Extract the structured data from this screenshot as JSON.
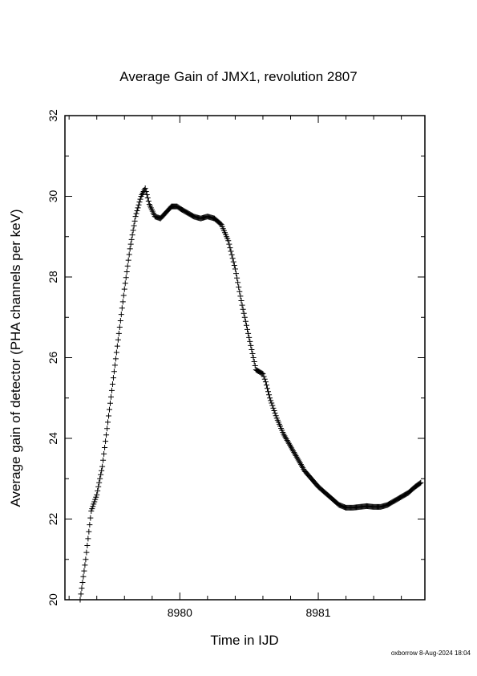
{
  "title": "Average Gain of JMX1, revolution 2807",
  "footer": "oxborrow  8-Aug-2024 18:04",
  "chart_data": {
    "type": "scatter",
    "marker": "plus",
    "title": "Average Gain of JMX1, revolution 2807",
    "xlabel": "Time in IJD",
    "ylabel": "Average gain of detector (PHA channels per keV)",
    "xlim": [
      8979.17,
      8981.77
    ],
    "ylim": [
      20,
      32
    ],
    "x_ticks": [
      8980,
      8981
    ],
    "x_tick_labels": [
      "8980",
      "8981"
    ],
    "y_ticks": [
      20,
      22,
      24,
      26,
      28,
      30,
      32
    ],
    "y_tick_labels": [
      "20",
      "22",
      "24",
      "26",
      "28",
      "30",
      "32"
    ],
    "grid": false,
    "series": [
      {
        "x": [
          8979.28,
          8979.32,
          8979.36,
          8979.4,
          8979.44,
          8979.48,
          8979.52,
          8979.56,
          8979.6,
          8979.64,
          8979.68,
          8979.72,
          8979.75,
          8979.78,
          8979.82,
          8979.86,
          8979.9,
          8979.94,
          8979.98,
          8980.0,
          8980.05,
          8980.1,
          8980.15,
          8980.2,
          8980.25,
          8980.3,
          8980.35,
          8980.4,
          8980.45,
          8980.5,
          8980.55,
          8980.6,
          8980.62,
          8980.65,
          8980.7,
          8980.75,
          8980.8,
          8980.85,
          8980.9,
          8980.95,
          8981.0,
          8981.05,
          8981.1,
          8981.15,
          8981.2,
          8981.25,
          8981.3,
          8981.35,
          8981.4,
          8981.45,
          8981.5,
          8981.55,
          8981.6,
          8981.65,
          8981.7,
          8981.74
        ],
        "y": [
          20.0,
          21.0,
          22.2,
          22.6,
          23.3,
          24.4,
          25.5,
          26.6,
          27.7,
          28.7,
          29.5,
          30.0,
          30.2,
          29.8,
          29.5,
          29.45,
          29.6,
          29.75,
          29.75,
          29.7,
          29.6,
          29.5,
          29.45,
          29.5,
          29.45,
          29.3,
          28.9,
          28.2,
          27.3,
          26.5,
          25.7,
          25.6,
          25.4,
          25.0,
          24.5,
          24.1,
          23.8,
          23.5,
          23.2,
          23.0,
          22.8,
          22.65,
          22.5,
          22.35,
          22.28,
          22.28,
          22.3,
          22.32,
          22.3,
          22.3,
          22.35,
          22.45,
          22.55,
          22.65,
          22.8,
          22.9
        ]
      }
    ]
  }
}
